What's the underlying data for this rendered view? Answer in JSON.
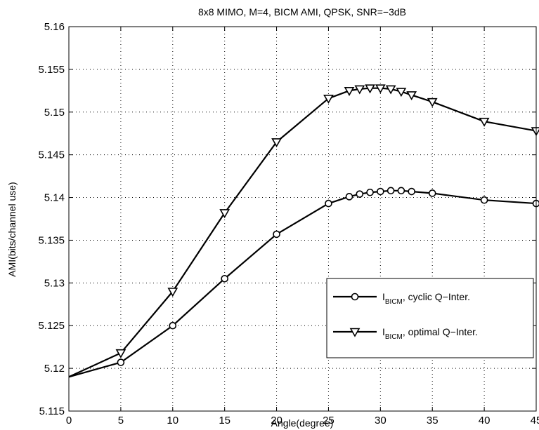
{
  "chart_data": {
    "type": "line",
    "title": "8x8 MIMO, M=4, BICM AMI, QPSK, SNR=−3dB",
    "xlabel": "Angle(degree)",
    "ylabel": "AMI(bits/channel use)",
    "xlim": [
      0,
      45
    ],
    "ylim": [
      5.115,
      5.16
    ],
    "xticks": [
      0,
      5,
      10,
      15,
      20,
      25,
      30,
      35,
      40,
      45
    ],
    "yticks": [
      5.115,
      5.12,
      5.125,
      5.13,
      5.135,
      5.14,
      5.145,
      5.15,
      5.155,
      5.16
    ],
    "xtick_labels": [
      "0",
      "5",
      "10",
      "15",
      "20",
      "25",
      "30",
      "35",
      "40",
      "45"
    ],
    "ytick_labels": [
      "5.115",
      "5.12",
      "5.125",
      "5.13",
      "5.135",
      "5.14",
      "5.145",
      "5.15",
      "5.155",
      "5.16"
    ],
    "grid": true,
    "legend_position": "lower-right",
    "series": [
      {
        "name": "I_BICM, cyclic Q−Inter.",
        "label_main": "I",
        "label_sub": "BICM",
        "label_rest": ", cyclic Q−Inter.",
        "marker": "circle",
        "color": "#000000",
        "x": [
          0,
          5,
          10,
          15,
          20,
          25,
          27,
          28,
          29,
          30,
          31,
          32,
          33,
          35,
          40,
          45
        ],
        "y": [
          5.119,
          5.1207,
          5.125,
          5.1305,
          5.1357,
          5.1393,
          5.1401,
          5.1404,
          5.1406,
          5.1407,
          5.1408,
          5.1408,
          5.1407,
          5.1405,
          5.1397,
          5.1393
        ]
      },
      {
        "name": "I_BICM, optimal Q−Inter.",
        "label_main": "I",
        "label_sub": "BICM",
        "label_rest": ", optimal Q−Inter.",
        "marker": "triangle-down",
        "color": "#000000",
        "x": [
          0,
          5,
          10,
          15,
          20,
          25,
          27,
          28,
          29,
          30,
          31,
          32,
          33,
          35,
          40,
          45
        ],
        "y": [
          5.119,
          5.1218,
          5.129,
          5.1382,
          5.1465,
          5.1516,
          5.1525,
          5.1527,
          5.1528,
          5.1528,
          5.1527,
          5.1524,
          5.152,
          5.1512,
          5.1489,
          5.1478
        ]
      }
    ]
  }
}
